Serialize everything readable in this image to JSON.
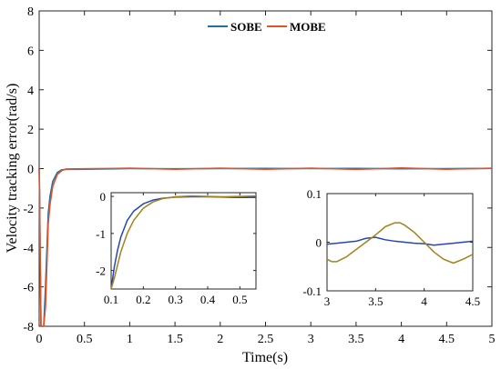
{
  "colors": {
    "SOBE": "#1f6fa8",
    "MOBE": "#e0542a",
    "inset_MOBE": "#a58218",
    "inset_SOBE": "#2447b8"
  },
  "chart_data": [
    {
      "type": "line",
      "title": "",
      "xlabel": "Time(s)",
      "ylabel": "Velocity tracking error(rad/s)",
      "xlim": [
        0,
        5
      ],
      "ylim": [
        -8,
        8
      ],
      "xticks": [
        0,
        0.5,
        1,
        1.5,
        2,
        2.5,
        3,
        3.5,
        4,
        4.5,
        5
      ],
      "xtick_labels": [
        "0",
        "0.5",
        "1",
        "1.5",
        "2",
        "2.5",
        "3",
        "3.5",
        "4",
        "4.5",
        "5"
      ],
      "yticks": [
        -8,
        -6,
        -4,
        -2,
        0,
        2,
        4,
        6,
        8
      ],
      "ytick_labels": [
        "-8",
        "-6",
        "-4",
        "-2",
        "0",
        "2",
        "4",
        "6",
        "8"
      ],
      "grid": false,
      "legend": {
        "placement": "top-center",
        "entries": [
          "SOBE",
          "MOBE"
        ]
      },
      "series": [
        {
          "name": "SOBE",
          "x": [
            0,
            0.005,
            0.01,
            0.02,
            0.03,
            0.05,
            0.07,
            0.1,
            0.12,
            0.15,
            0.2,
            0.25,
            0.3,
            0.5,
            1,
            1.5,
            2,
            2.5,
            3,
            3.5,
            4,
            4.5,
            5
          ],
          "y": [
            0,
            -1.5,
            -4,
            -8,
            -8,
            -8,
            -6,
            -2.3,
            -1.4,
            -0.65,
            -0.2,
            -0.06,
            -0.04,
            -0.03,
            0.0,
            -0.01,
            0.0,
            0.01,
            0.0,
            0.01,
            -0.01,
            0.0,
            0.01
          ]
        },
        {
          "name": "MOBE",
          "x": [
            0,
            0.005,
            0.01,
            0.02,
            0.03,
            0.05,
            0.07,
            0.1,
            0.12,
            0.15,
            0.2,
            0.25,
            0.3,
            0.5,
            1,
            1.5,
            2,
            2.5,
            3,
            3.5,
            4,
            4.5,
            5
          ],
          "y": [
            0,
            -1.5,
            -4,
            -8,
            -8,
            -8,
            -7,
            -2.8,
            -1.8,
            -0.9,
            -0.3,
            -0.1,
            -0.02,
            -0.01,
            0.02,
            -0.03,
            0.02,
            -0.03,
            0.02,
            -0.04,
            0.03,
            -0.03,
            0.02
          ]
        }
      ]
    },
    {
      "type": "line",
      "title": "",
      "xlim": [
        0.1,
        0.55
      ],
      "ylim": [
        -2.5,
        0.1
      ],
      "xticks": [
        0.1,
        0.2,
        0.3,
        0.4,
        0.5
      ],
      "xtick_labels": [
        "0.1",
        "0.2",
        "0.3",
        "0.4",
        "0.5"
      ],
      "yticks": [
        -2,
        -1,
        0
      ],
      "ytick_labels": [
        "-2",
        "-1",
        "0"
      ],
      "series": [
        {
          "name": "SOBE",
          "x": [
            0.1,
            0.11,
            0.12,
            0.13,
            0.15,
            0.17,
            0.2,
            0.23,
            0.26,
            0.3,
            0.35,
            0.4,
            0.45,
            0.5,
            0.55
          ],
          "y": [
            -2.5,
            -1.9,
            -1.45,
            -1.1,
            -0.65,
            -0.4,
            -0.2,
            -0.1,
            -0.05,
            -0.02,
            -0.01,
            -0.01,
            -0.02,
            -0.03,
            -0.03
          ]
        },
        {
          "name": "MOBE",
          "x": [
            0.1,
            0.11,
            0.12,
            0.13,
            0.15,
            0.17,
            0.2,
            0.23,
            0.26,
            0.3,
            0.35,
            0.4,
            0.45,
            0.5,
            0.55
          ],
          "y": [
            -2.5,
            -2.2,
            -1.85,
            -1.5,
            -1.0,
            -0.65,
            -0.32,
            -0.15,
            -0.06,
            -0.01,
            0.01,
            0.0,
            -0.01,
            0.0,
            0.01
          ]
        }
      ]
    },
    {
      "type": "line",
      "title": "",
      "xlim": [
        3,
        4.5
      ],
      "ylim": [
        -0.1,
        0.1
      ],
      "xticks": [
        3,
        3.5,
        4,
        4.5
      ],
      "xtick_labels": [
        "3",
        "3.5",
        "4",
        "4.5"
      ],
      "yticks": [
        -0.1,
        0,
        0.1
      ],
      "ytick_labels": [
        "-0.1",
        "0",
        "0.1"
      ],
      "series": [
        {
          "name": "SOBE",
          "x": [
            3,
            3.1,
            3.2,
            3.3,
            3.4,
            3.5,
            3.6,
            3.7,
            3.8,
            3.9,
            4.0,
            4.1,
            4.2,
            4.3,
            4.4,
            4.5
          ],
          "y": [
            -0.004,
            -0.002,
            0.0,
            0.002,
            0.008,
            0.01,
            0.005,
            0.002,
            0.0,
            -0.002,
            -0.003,
            -0.006,
            -0.004,
            -0.002,
            0.0,
            0.002
          ]
        },
        {
          "name": "MOBE",
          "x": [
            3,
            3.05,
            3.1,
            3.2,
            3.3,
            3.4,
            3.5,
            3.6,
            3.7,
            3.75,
            3.8,
            3.9,
            4.0,
            4.1,
            4.2,
            4.3,
            4.4,
            4.45,
            4.5
          ],
          "y": [
            -0.035,
            -0.04,
            -0.04,
            -0.03,
            -0.015,
            0.0,
            0.015,
            0.032,
            0.04,
            0.04,
            0.035,
            0.02,
            0.0,
            -0.02,
            -0.035,
            -0.043,
            -0.035,
            -0.03,
            -0.025
          ]
        }
      ]
    }
  ]
}
